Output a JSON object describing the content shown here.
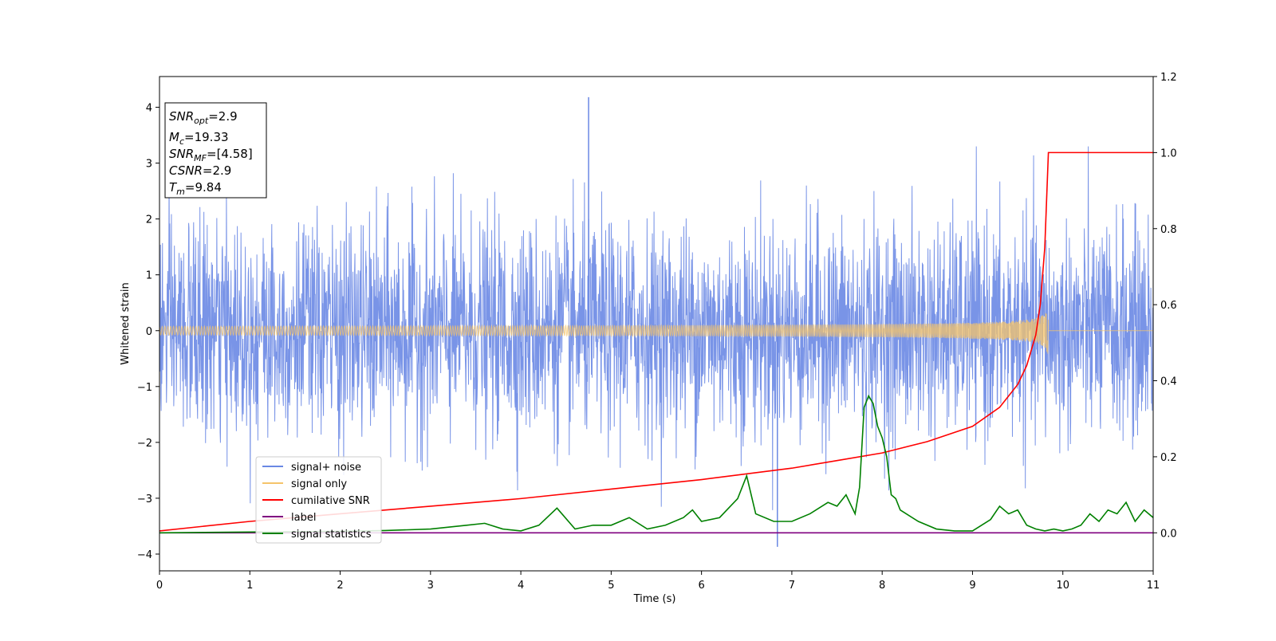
{
  "chart_data": {
    "type": "line",
    "xlabel": "Time (s)",
    "ylabel": "Whitened strain",
    "xlim": [
      0,
      11
    ],
    "ylim_left": [
      -4.3,
      4.55
    ],
    "ylim_right": [
      -0.1,
      1.2
    ],
    "xticks": [
      "0",
      "1",
      "2",
      "3",
      "4",
      "5",
      "6",
      "7",
      "8",
      "9",
      "10",
      "11"
    ],
    "yticks_left": [
      "−4",
      "−3",
      "−2",
      "−1",
      "0",
      "1",
      "2",
      "3",
      "4"
    ],
    "yticks_right": [
      "0.0",
      "0.2",
      "0.4",
      "0.6",
      "0.8",
      "1.0",
      "1.2"
    ],
    "grid": false,
    "legend_position": "lower-left",
    "annotation": [
      {
        "main": "SNR",
        "sub": "opt",
        "value": "=2.9"
      },
      {
        "main": "M",
        "sub": "c",
        "value": "=19.33"
      },
      {
        "main": "SNR",
        "sub": "MF",
        "value": "=[4.58]"
      },
      {
        "main": "CSNR",
        "sub": "",
        "value": "=2.9"
      },
      {
        "main": "T",
        "sub": "m",
        "value": "=9.84"
      }
    ],
    "merger_time": 9.84,
    "series": [
      {
        "name": "signal+ noise",
        "axis": "left",
        "color": "#6a88e4",
        "description_values": {
          "typical_range": [
            -2.5,
            2.5
          ],
          "max": 4.18,
          "min": -3.87
        }
      },
      {
        "name": "signal only",
        "axis": "left",
        "color": "#f5c46a",
        "description_values": {
          "peak_amplitude": 0.55,
          "end_time": 9.84
        }
      },
      {
        "name": "cumilative SNR",
        "axis": "right",
        "color": "#ff0000",
        "x": [
          0,
          1,
          2,
          3,
          4,
          5,
          6,
          7,
          7.5,
          8,
          8.5,
          9,
          9.3,
          9.5,
          9.6,
          9.7,
          9.75,
          9.8,
          9.84,
          11
        ],
        "values": [
          0.005,
          0.03,
          0.05,
          0.07,
          0.09,
          0.115,
          0.14,
          0.17,
          0.19,
          0.21,
          0.24,
          0.28,
          0.33,
          0.39,
          0.44,
          0.52,
          0.6,
          0.75,
          1.0,
          1.0
        ]
      },
      {
        "name": "label",
        "axis": "right",
        "color": "#800080",
        "x": [
          0,
          11
        ],
        "values": [
          0,
          0
        ]
      },
      {
        "name": "signal statistics",
        "axis": "right",
        "color": "#008000",
        "x": [
          0,
          0.5,
          1,
          1.5,
          2,
          2.5,
          3,
          3.2,
          3.4,
          3.6,
          3.8,
          4,
          4.2,
          4.4,
          4.6,
          4.8,
          5,
          5.2,
          5.4,
          5.6,
          5.8,
          5.9,
          6,
          6.2,
          6.4,
          6.5,
          6.6,
          6.8,
          7,
          7.2,
          7.4,
          7.5,
          7.6,
          7.7,
          7.75,
          7.8,
          7.85,
          7.9,
          7.95,
          8,
          8.05,
          8.1,
          8.15,
          8.2,
          8.4,
          8.6,
          8.8,
          9,
          9.1,
          9.2,
          9.3,
          9.4,
          9.5,
          9.6,
          9.7,
          9.8,
          9.9,
          10,
          10.1,
          10.2,
          10.3,
          10.4,
          10.5,
          10.6,
          10.7,
          10.8,
          10.9,
          11
        ],
        "values": [
          0.0,
          0.001,
          0.002,
          0.003,
          0.004,
          0.006,
          0.01,
          0.015,
          0.02,
          0.025,
          0.01,
          0.005,
          0.02,
          0.065,
          0.01,
          0.02,
          0.02,
          0.04,
          0.01,
          0.02,
          0.04,
          0.06,
          0.03,
          0.04,
          0.09,
          0.15,
          0.05,
          0.03,
          0.03,
          0.05,
          0.08,
          0.07,
          0.1,
          0.05,
          0.12,
          0.33,
          0.36,
          0.34,
          0.28,
          0.25,
          0.2,
          0.1,
          0.09,
          0.06,
          0.03,
          0.01,
          0.005,
          0.005,
          0.02,
          0.035,
          0.07,
          0.05,
          0.06,
          0.02,
          0.01,
          0.005,
          0.01,
          0.005,
          0.01,
          0.02,
          0.05,
          0.03,
          0.06,
          0.05,
          0.08,
          0.03,
          0.06,
          0.04
        ]
      }
    ]
  }
}
